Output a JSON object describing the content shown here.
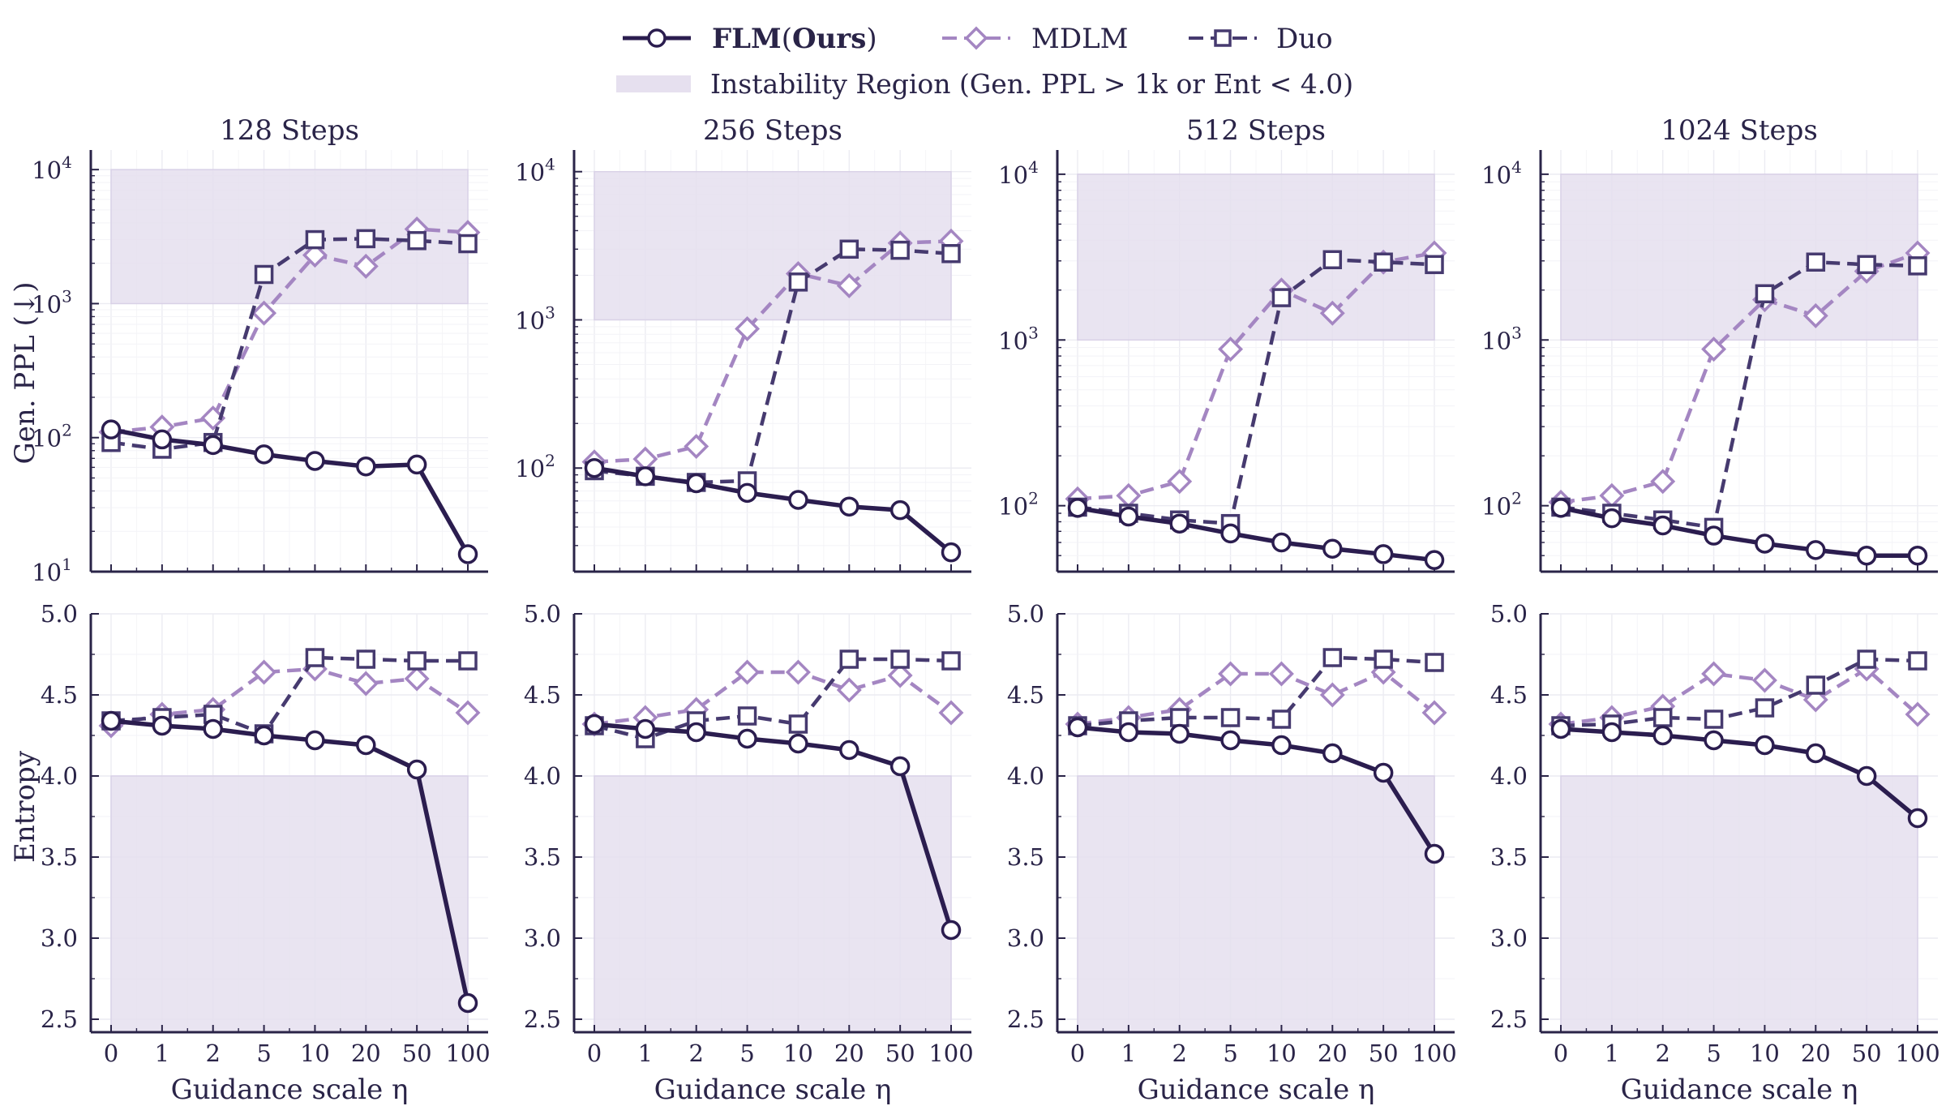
{
  "legend": {
    "flm_bold": "FLM",
    "flm_paren_open": "(",
    "flm_ours": "Ours",
    "flm_paren_close": ")",
    "mdlm": "MDLM",
    "duo": "Duo",
    "region": "Instability Region (Gen. PPL > 1k or Ent < 4.0)"
  },
  "colors": {
    "flm": "#2b1d4f",
    "mdlm": "#a486c2",
    "duo": "#463a6f",
    "region": "#e6e0ef",
    "axis": "#2a2448"
  },
  "chart_data": {
    "type": "line",
    "x_categories": [
      "0",
      "1",
      "2",
      "5",
      "10",
      "20",
      "50",
      "100"
    ],
    "xlabel": "Guidance scale η",
    "ylabel_ppl": "Gen. PPL (↓)",
    "ylabel_entropy": "Entropy",
    "ppl_ticks": [
      "10",
      "10",
      "10",
      "10"
    ],
    "ppl_tick_exps": [
      "1",
      "2",
      "3",
      "4"
    ],
    "entropy_ticks": [
      "5.0",
      "4.5",
      "4.0",
      "3.5",
      "3.0",
      "2.5"
    ],
    "entropy_ylim": [
      2.42,
      5.0
    ],
    "ppl_instability_range": [
      1000,
      10000
    ],
    "entropy_instability_range": [
      2.42,
      4.0
    ],
    "panels": [
      {
        "title": "128 Steps",
        "ppl_ylim": [
          10,
          14000
        ],
        "ppl": {
          "FLM": [
            115,
            97,
            88,
            75,
            67,
            61,
            63,
            13.5
          ],
          "MDLM": [
            110,
            120,
            140,
            850,
            2300,
            1900,
            3600,
            3400
          ],
          "Duo": [
            92,
            82,
            92,
            1650,
            3000,
            3050,
            2950,
            2800
          ]
        },
        "entropy": {
          "FLM": [
            4.34,
            4.31,
            4.29,
            4.25,
            4.22,
            4.19,
            4.04,
            2.6
          ],
          "MDLM": [
            4.31,
            4.38,
            4.41,
            4.64,
            4.66,
            4.57,
            4.6,
            4.39
          ],
          "Duo": [
            4.34,
            4.36,
            4.38,
            4.26,
            4.73,
            4.72,
            4.71,
            4.71
          ]
        }
      },
      {
        "title": "256 Steps",
        "ppl_ylim": [
          20,
          14000
        ],
        "ppl": {
          "FLM": [
            100,
            88,
            79,
            68,
            61,
            55,
            52,
            27
          ],
          "MDLM": [
            110,
            115,
            140,
            870,
            2050,
            1700,
            3300,
            3400
          ],
          "Duo": [
            96,
            88,
            80,
            82,
            1800,
            3000,
            2950,
            2800
          ]
        },
        "entropy": {
          "FLM": [
            4.32,
            4.29,
            4.27,
            4.23,
            4.2,
            4.16,
            4.06,
            3.05
          ],
          "MDLM": [
            4.32,
            4.36,
            4.41,
            4.64,
            4.64,
            4.53,
            4.62,
            4.39
          ],
          "Duo": [
            4.31,
            4.23,
            4.34,
            4.37,
            4.32,
            4.72,
            4.72,
            4.71
          ]
        }
      },
      {
        "title": "512 Steps",
        "ppl_ylim": [
          40,
          14000
        ],
        "ppl": {
          "FLM": [
            97,
            86,
            78,
            68,
            60,
            55,
            51,
            47
          ],
          "MDLM": [
            110,
            115,
            140,
            880,
            2000,
            1450,
            2950,
            3350
          ],
          "Duo": [
            98,
            90,
            82,
            78,
            1800,
            3050,
            2950,
            2850
          ]
        },
        "entropy": {
          "FLM": [
            4.3,
            4.27,
            4.26,
            4.22,
            4.19,
            4.14,
            4.02,
            3.52
          ],
          "MDLM": [
            4.32,
            4.36,
            4.41,
            4.63,
            4.63,
            4.5,
            4.64,
            4.39
          ],
          "Duo": [
            4.31,
            4.34,
            4.36,
            4.36,
            4.35,
            4.73,
            4.72,
            4.7
          ]
        }
      },
      {
        "title": "1024 Steps",
        "ppl_ylim": [
          40,
          14000
        ],
        "ppl": {
          "FLM": [
            97,
            84,
            76,
            66,
            59,
            54,
            50,
            50
          ],
          "MDLM": [
            105,
            115,
            140,
            880,
            1750,
            1400,
            2600,
            3350
          ],
          "Duo": [
            98,
            90,
            82,
            74,
            1900,
            2950,
            2850,
            2800
          ]
        },
        "entropy": {
          "FLM": [
            4.29,
            4.27,
            4.25,
            4.22,
            4.19,
            4.14,
            4.0,
            3.74
          ],
          "MDLM": [
            4.32,
            4.36,
            4.43,
            4.63,
            4.59,
            4.47,
            4.66,
            4.38
          ],
          "Duo": [
            4.31,
            4.32,
            4.36,
            4.35,
            4.42,
            4.56,
            4.72,
            4.71
          ]
        }
      }
    ]
  }
}
